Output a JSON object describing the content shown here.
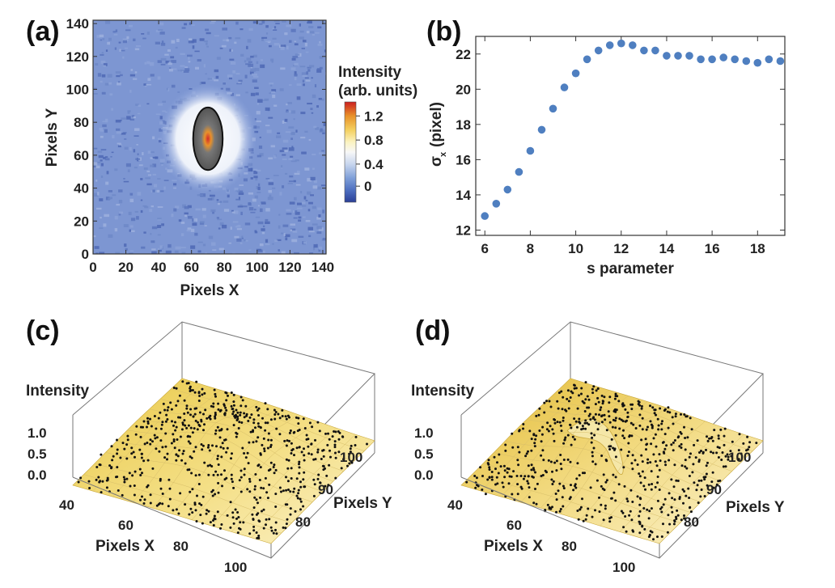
{
  "chart_data": [
    {
      "panel": "(a)",
      "type": "heatmap",
      "title": "",
      "xlabel": "Pixels X",
      "ylabel": "Pixels Y",
      "xlim": [
        0,
        142
      ],
      "ylim": [
        0,
        142
      ],
      "x_ticks": [
        0,
        20,
        40,
        60,
        80,
        100,
        120,
        140
      ],
      "y_ticks": [
        0,
        20,
        40,
        60,
        80,
        100,
        120,
        140
      ],
      "spot_center": [
        70,
        70
      ],
      "spot_semi_axes": [
        9,
        19
      ],
      "colorbar": {
        "title_line1": "Intensity",
        "title_line2": "(arb. units)",
        "ticks": [
          "1.2",
          "0.8",
          "0.4",
          "0"
        ],
        "colors": [
          "#cc1f1f",
          "#e8922a",
          "#f4d060",
          "#fbf3c0",
          "#f4f4f4",
          "#c8d6ee",
          "#7f9fd8",
          "#4e6fc0",
          "#2a3f97"
        ]
      }
    },
    {
      "panel": "(b)",
      "type": "scatter",
      "title": "",
      "xlabel": "s parameter",
      "ylabel": "σ",
      "ylabel_sub": "x",
      "ylabel_unit": "(pixel)",
      "xlim": [
        5.6,
        19.2
      ],
      "ylim": [
        11.7,
        23.0
      ],
      "x_ticks": [
        6,
        8,
        10,
        12,
        14,
        16,
        18
      ],
      "y_ticks": [
        12,
        14,
        16,
        18,
        20,
        22
      ],
      "x": [
        6,
        6.5,
        7,
        7.5,
        8,
        8.5,
        9,
        9.5,
        10,
        10.5,
        11,
        11.5,
        12,
        12.5,
        13,
        13.5,
        14,
        14.5,
        15,
        15.5,
        16,
        16.5,
        17,
        17.5,
        18,
        18.5,
        19
      ],
      "y": [
        12.8,
        13.5,
        14.3,
        15.3,
        16.5,
        17.7,
        18.9,
        20.1,
        20.9,
        21.7,
        22.2,
        22.5,
        22.6,
        22.5,
        22.2,
        22.2,
        21.9,
        21.9,
        21.9,
        21.7,
        21.7,
        21.8,
        21.7,
        21.6,
        21.5,
        21.7,
        21.6
      ],
      "marker_color": "#4f7fc0"
    },
    {
      "panel": "(c)",
      "type": "surface3d",
      "zlabel": "Intensity",
      "xlabel": "Pixels X",
      "ylabel": "Pixels Y",
      "z_ticks": [
        "1.0",
        "0.5",
        "0.0"
      ],
      "x_ticks": [
        "40",
        "60",
        "80",
        "100"
      ],
      "y_ticks": [
        "100",
        "90",
        "80"
      ],
      "surface": "smooth gaussian fit"
    },
    {
      "panel": "(d)",
      "type": "surface3d",
      "zlabel": "Intensity",
      "xlabel": "Pixels X",
      "ylabel": "Pixels Y",
      "z_ticks": [
        "1.0",
        "0.5",
        "0.0"
      ],
      "x_ticks": [
        "40",
        "60",
        "80",
        "100"
      ],
      "y_ticks": [
        "100",
        "90",
        "80"
      ],
      "surface": "fit with central dip"
    }
  ]
}
